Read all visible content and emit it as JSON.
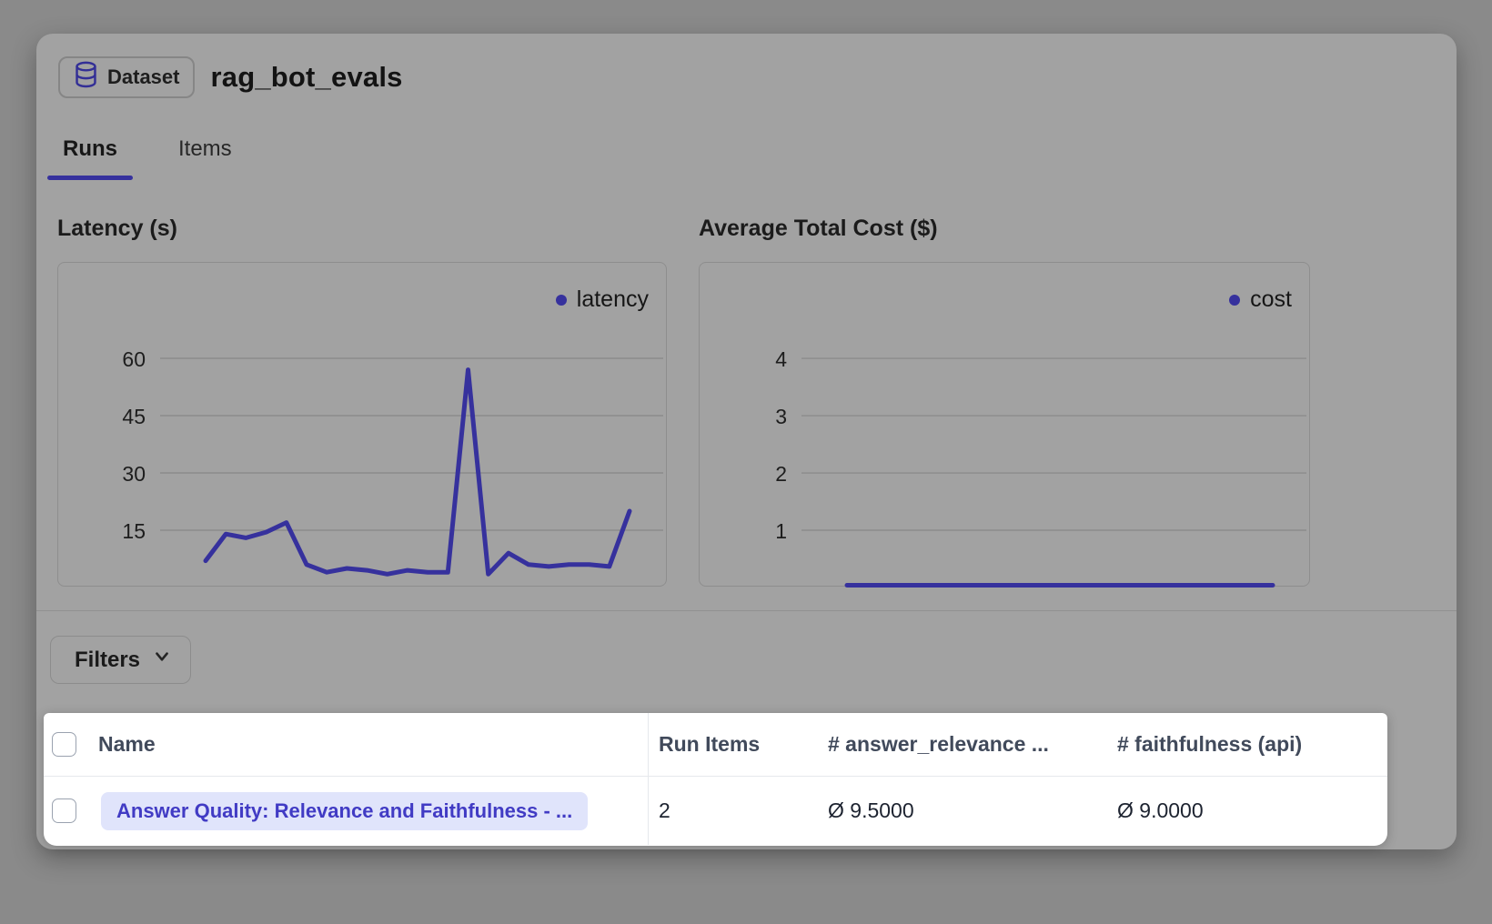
{
  "header": {
    "badge_label": "Dataset",
    "title": "rag_bot_evals"
  },
  "tabs": [
    {
      "label": "Runs",
      "active": true
    },
    {
      "label": "Items",
      "active": false
    }
  ],
  "filters_label": "Filters",
  "chart_data": [
    {
      "type": "line",
      "title": "Latency (s)",
      "xlabel": "",
      "ylabel": "",
      "yticks": [
        15,
        30,
        45,
        60
      ],
      "ylim": [
        0,
        85
      ],
      "grid": true,
      "legend_position": "top-right",
      "line_color": "#36319d",
      "series": [
        {
          "name": "latency",
          "values": [
            7,
            14,
            13,
            14.5,
            17,
            6,
            4,
            5,
            4.5,
            3.5,
            4.5,
            4,
            4,
            57,
            3.5,
            9,
            6,
            5.5,
            6,
            6,
            5.5,
            20
          ]
        }
      ]
    },
    {
      "type": "line",
      "title": "Average Total Cost ($)",
      "xlabel": "",
      "ylabel": "",
      "yticks": [
        1,
        2,
        3,
        4
      ],
      "ylim": [
        0,
        5.67
      ],
      "grid": true,
      "legend_position": "top-right",
      "line_color": "#36319d",
      "series": [
        {
          "name": "cost",
          "values": [
            0.04,
            0.04,
            0.04,
            0.04,
            0.04,
            0.04,
            0.04,
            0.04,
            0.04,
            0.04,
            0.04,
            0.04,
            0.04,
            0.04,
            0.04,
            0.04,
            0.04,
            0.04,
            0.04,
            0.04,
            0.04,
            0.04
          ]
        }
      ]
    }
  ],
  "table": {
    "header": {
      "name": "Name",
      "run_items": "Run Items",
      "answer_relevance": "# answer_relevance ...",
      "faithfulness": "# faithfulness (api)"
    },
    "rows": [
      {
        "name": "Answer Quality: Relevance and Faithfulness - ...",
        "run_items": "2",
        "answer_relevance": "Ø 9.5000",
        "faithfulness": "Ø 9.0000"
      }
    ]
  },
  "colors": {
    "accent_indigo": "#36319d",
    "pill_bg": "#e0e4fb",
    "pill_text": "#413bc4",
    "overlay_gray": "#8a8a8a",
    "card_gray": "#a2a2a2",
    "table_bg": "#ffffff"
  }
}
